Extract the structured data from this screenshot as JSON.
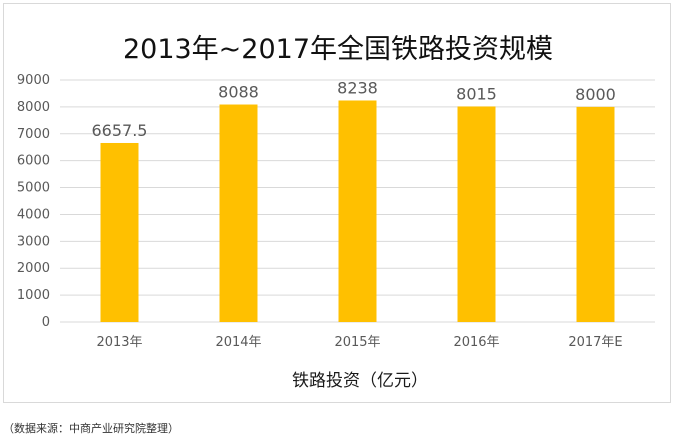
{
  "chart_data": {
    "type": "bar",
    "title": "2013年~2017年全国铁路投资规模",
    "xlabel": "铁路投资（亿元）",
    "ylabel": "",
    "categories": [
      "2013年",
      "2014年",
      "2015年",
      "2016年",
      "2017年E"
    ],
    "values": [
      6657.5,
      8088,
      8238,
      8015,
      8000
    ],
    "value_labels": [
      "6657.5",
      "8088",
      "8238",
      "8015",
      "8000"
    ],
    "ylim": [
      0,
      9000
    ],
    "yticks": [
      0,
      1000,
      2000,
      3000,
      4000,
      5000,
      6000,
      7000,
      8000,
      9000
    ],
    "grid": true,
    "legend": "none",
    "bar_color": "#FFC000",
    "grid_color": "#d9d9d9"
  },
  "source_note": "（数据来源：中商产业研究院整理）"
}
